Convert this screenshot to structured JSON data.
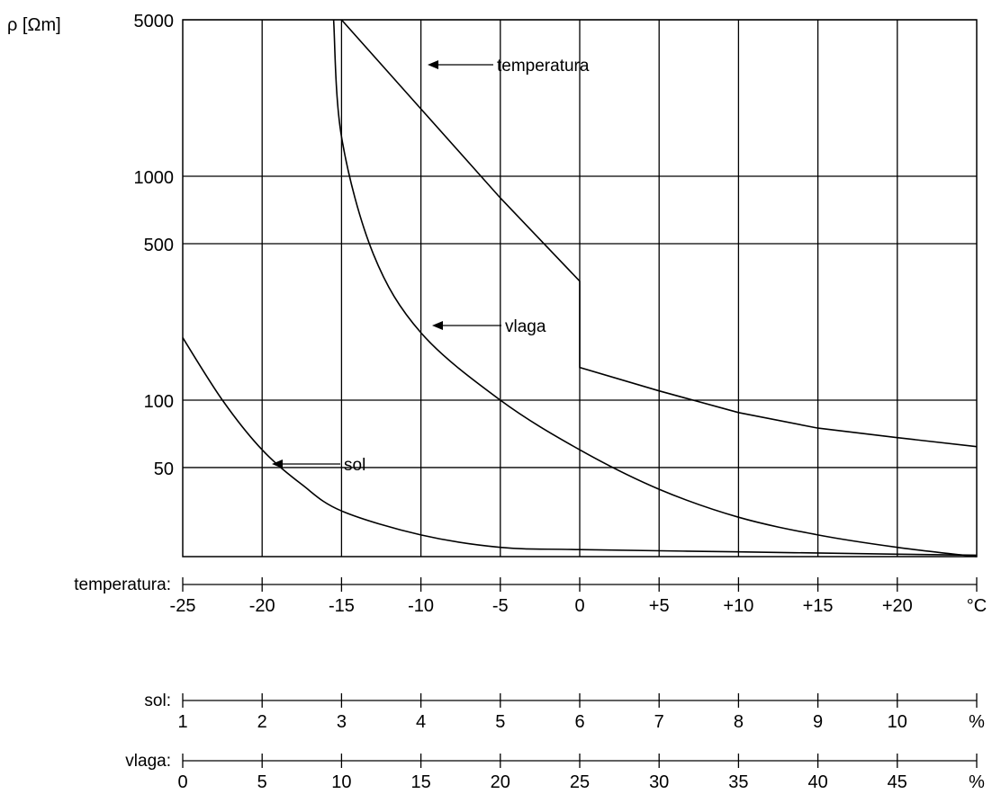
{
  "chart_data": {
    "type": "line",
    "title": "",
    "ylabel": "ρ [Ωm]",
    "yscale": "log",
    "ylim": [
      20,
      5000
    ],
    "y_gridlines": [
      5000,
      1000,
      500,
      100,
      50
    ],
    "y_tick_labels": [
      "5000",
      "1000",
      "500",
      "100",
      "50"
    ],
    "x_axes": [
      {
        "name": "temperatura:",
        "unit": "°C",
        "ticks": [
          "-25",
          "-20",
          "-15",
          "-10",
          "-5",
          "0",
          "+5",
          "+10",
          "+15",
          "+20"
        ],
        "range": [
          -25,
          25
        ]
      },
      {
        "name": "sol:",
        "unit": "%",
        "ticks": [
          "1",
          "2",
          "3",
          "4",
          "5",
          "6",
          "7",
          "8",
          "9",
          "10"
        ],
        "range": [
          1,
          11
        ]
      },
      {
        "name": "vlaga:",
        "unit": "%",
        "ticks": [
          "0",
          "5",
          "10",
          "15",
          "20",
          "25",
          "30",
          "35",
          "40",
          "45"
        ],
        "range": [
          0,
          50
        ]
      }
    ],
    "series": [
      {
        "name": "temperatura",
        "axis": "temperatura:",
        "x": [
          -15,
          -10,
          -5,
          0,
          0,
          5,
          10,
          15,
          20,
          25
        ],
        "y": [
          5000,
          2000,
          800,
          340,
          140,
          110,
          88,
          75,
          68,
          62
        ],
        "annotation_x": -5
      },
      {
        "name": "vlaga",
        "axis": "vlaga:",
        "x": [
          9.5,
          10,
          12,
          15,
          20,
          25,
          30,
          35,
          40,
          45,
          50
        ],
        "y": [
          5000,
          1500,
          450,
          200,
          100,
          60,
          40,
          30,
          25,
          22,
          20
        ],
        "annotation_x": 20
      },
      {
        "name": "sol",
        "axis": "sol:",
        "x": [
          1,
          1.5,
          2,
          2.5,
          3,
          4,
          5,
          6,
          8,
          10,
          11
        ],
        "y": [
          190,
          100,
          60,
          42,
          32,
          25,
          22,
          21.5,
          21,
          20.5,
          20.3
        ],
        "annotation_x": 2.3
      }
    ]
  }
}
